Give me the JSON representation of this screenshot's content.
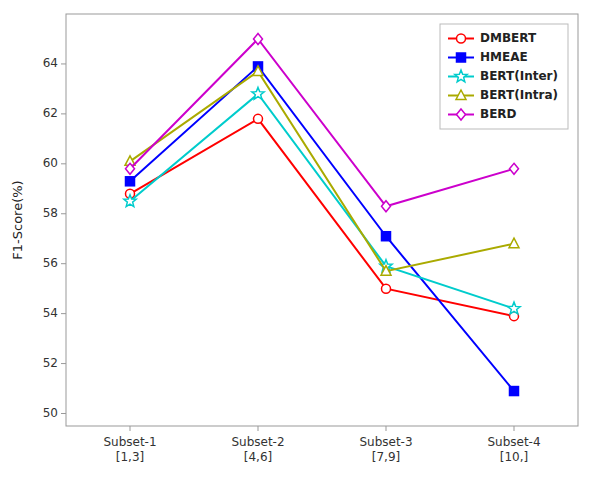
{
  "chart_data": {
    "type": "line",
    "categories": [
      "Subset-1\n[1,3]",
      "Subset-2\n[4,6]",
      "Subset-3\n[7,9]",
      "Subset-4\n[10,]"
    ],
    "series": [
      {
        "name": "DMBERT",
        "color": "#FF0000",
        "marker": "circle",
        "values": [
          58.8,
          61.8,
          55.0,
          53.9
        ]
      },
      {
        "name": "HMEAE",
        "color": "#0000FF",
        "marker": "filled-square",
        "values": [
          59.3,
          63.9,
          57.1,
          50.9
        ]
      },
      {
        "name": "BERT(Inter)",
        "color": "#00CCCC",
        "marker": "star",
        "values": [
          58.5,
          62.8,
          55.9,
          54.2
        ]
      },
      {
        "name": "BERT(Intra)",
        "color": "#AAAA00",
        "marker": "triangle",
        "values": [
          60.1,
          63.7,
          55.7,
          56.8
        ]
      },
      {
        "name": "BERD",
        "color": "#CC00CC",
        "marker": "diamond",
        "values": [
          59.8,
          65.0,
          58.3,
          59.8
        ]
      }
    ],
    "ylabel": "F1-Score(%)",
    "ylim": [
      49.5,
      66.0
    ],
    "yticks": [
      50,
      52,
      54,
      56,
      58,
      60,
      62,
      64
    ],
    "legend": "upper right"
  }
}
